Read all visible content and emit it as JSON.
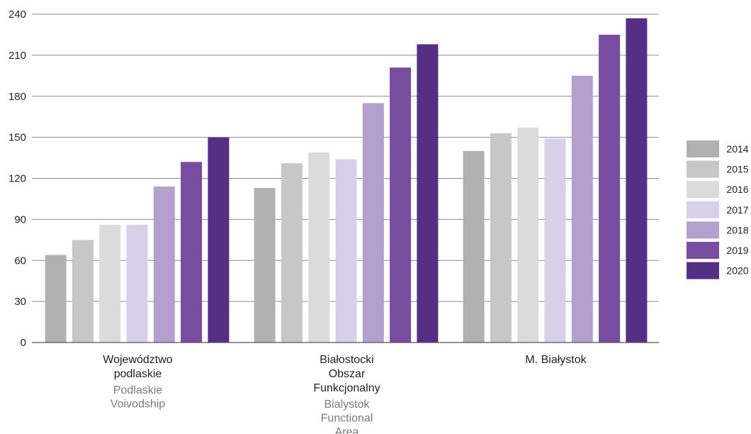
{
  "chart_data": {
    "type": "bar",
    "title": "",
    "xlabel": "",
    "ylabel": "",
    "ylim": [
      0,
      240
    ],
    "yticks": [
      0,
      30,
      60,
      90,
      120,
      150,
      180,
      210,
      240
    ],
    "grid": true,
    "legend_position": "right",
    "categories": [
      {
        "label": [
          "Województwo",
          "podlaskie"
        ],
        "sublabel": [
          "Podlaskie",
          "Voivodship"
        ]
      },
      {
        "label": [
          "Białostocki",
          "Obszar",
          "Funkcjonalny"
        ],
        "sublabel": [
          "Bialystok",
          "Functional",
          "Area"
        ]
      },
      {
        "label": [
          "M. Białystok"
        ],
        "sublabel": []
      }
    ],
    "series": [
      {
        "name": "2014",
        "color": "#b1b1b1",
        "values": [
          64,
          113,
          140
        ]
      },
      {
        "name": "2015",
        "color": "#c6c7c6",
        "values": [
          75,
          131,
          153
        ]
      },
      {
        "name": "2016",
        "color": "#dadbda",
        "values": [
          86,
          139,
          157
        ]
      },
      {
        "name": "2017",
        "color": "#d8d0e8",
        "values": [
          86,
          134,
          149
        ]
      },
      {
        "name": "2018",
        "color": "#b3a0cf",
        "values": [
          114,
          175,
          195
        ]
      },
      {
        "name": "2019",
        "color": "#764d9f",
        "values": [
          132,
          201,
          225
        ]
      },
      {
        "name": "2020",
        "color": "#552f85",
        "values": [
          150,
          218,
          237
        ]
      }
    ]
  }
}
